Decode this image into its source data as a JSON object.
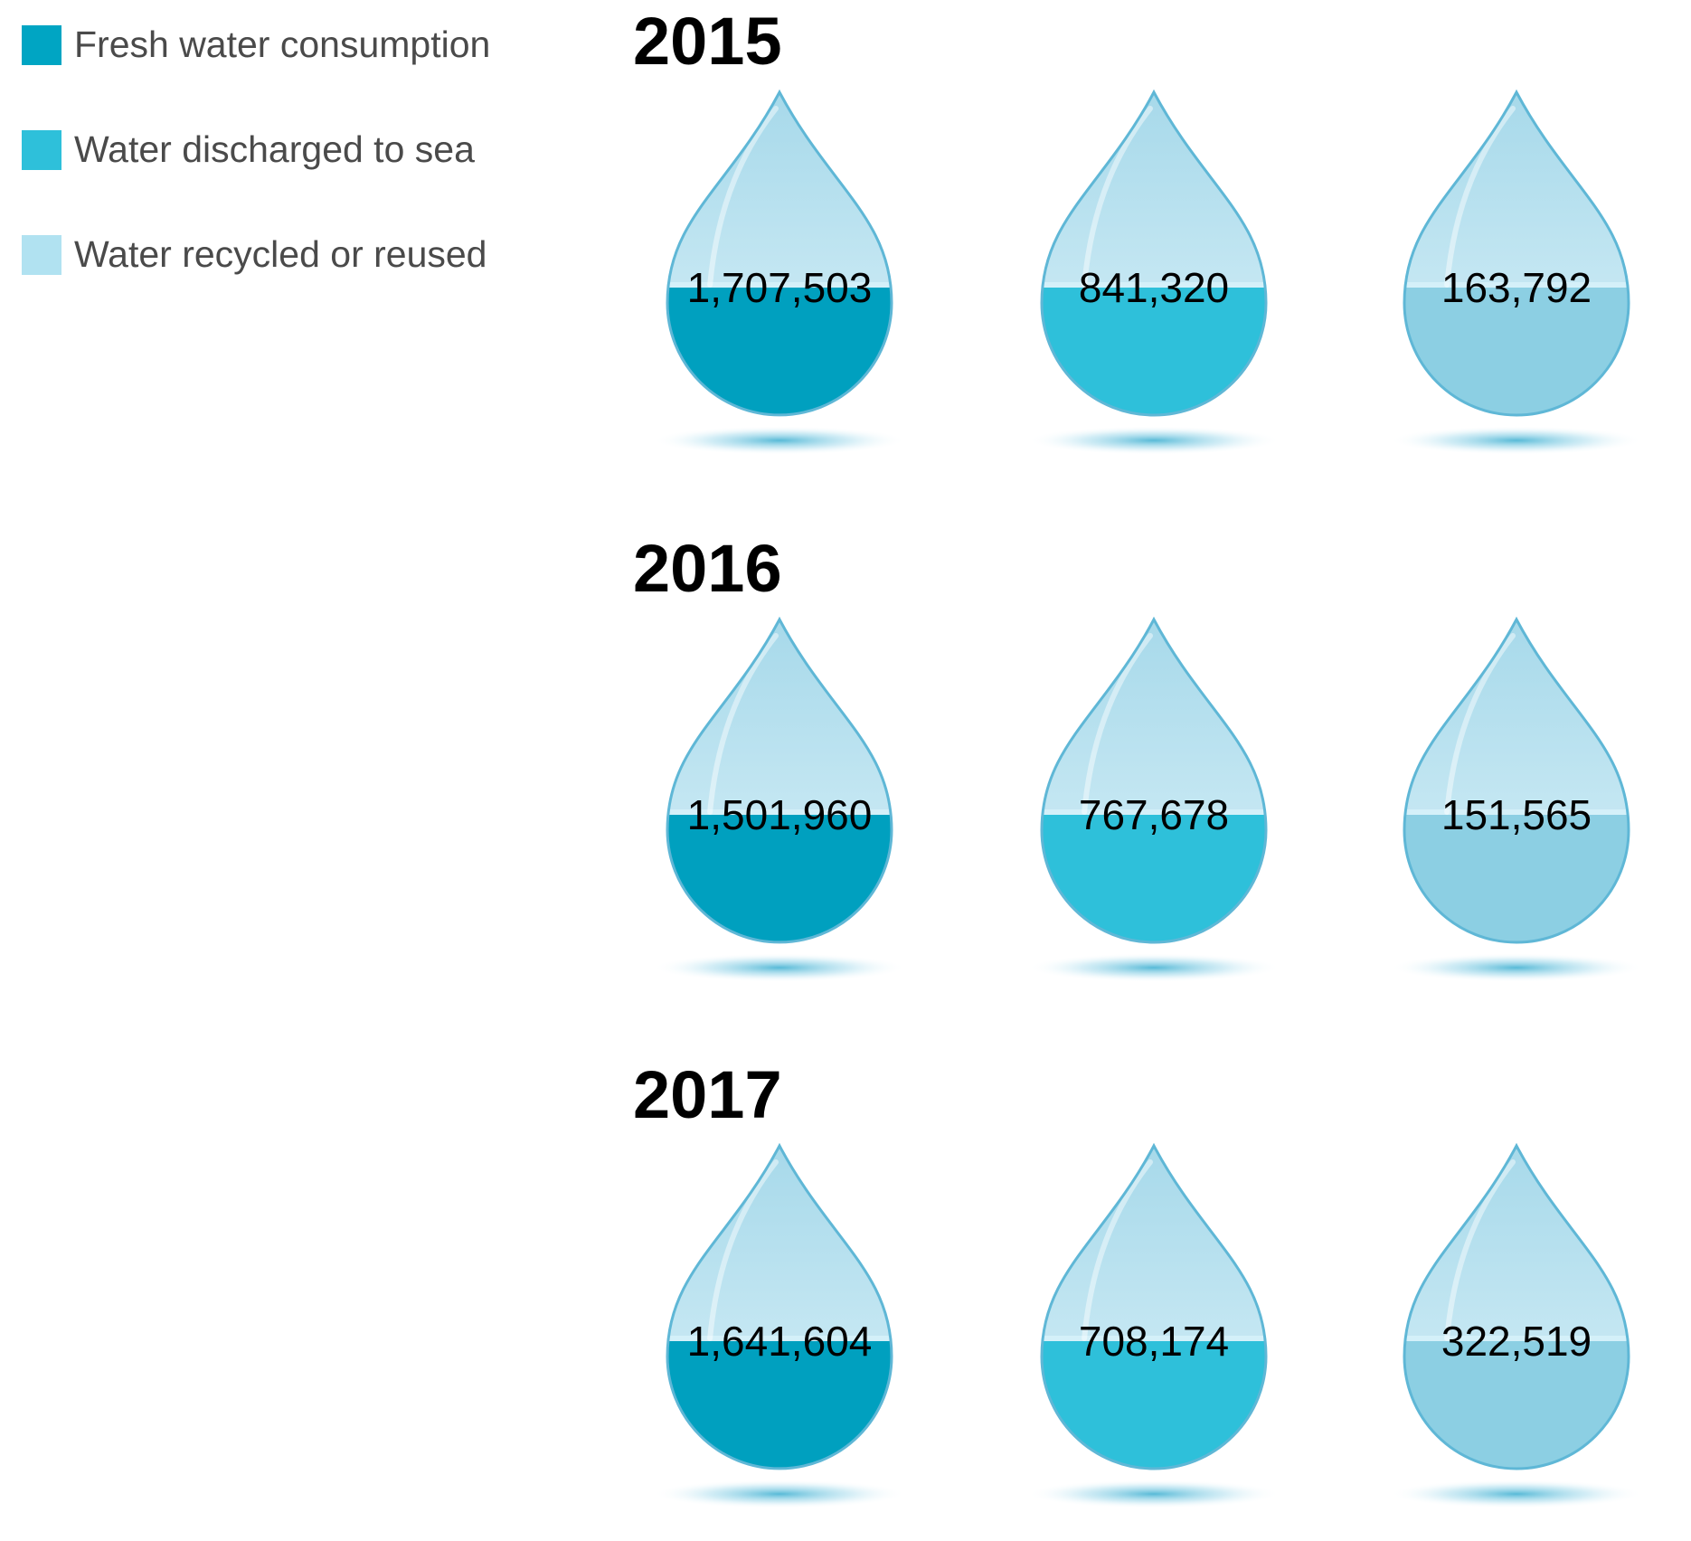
{
  "legend": [
    {
      "label": "Fresh water consumption",
      "color": "#00a5c3"
    },
    {
      "label": "Water discharged to sea",
      "color": "#2ec0da"
    },
    {
      "label": "Water recycled or reused",
      "color": "#b1e2f1"
    }
  ],
  "chart_data": {
    "type": "table",
    "title": "",
    "series_names": [
      "Fresh water consumption",
      "Water discharged to sea",
      "Water recycled or reused"
    ],
    "groups": [
      {
        "year": "2015",
        "values": [
          1707503,
          841320,
          163792
        ],
        "labels": [
          "1,707,503",
          "841,320",
          "163,792"
        ]
      },
      {
        "year": "2016",
        "values": [
          1501960,
          767678,
          151565
        ],
        "labels": [
          "1,501,960",
          "767,678",
          "151,565"
        ]
      },
      {
        "year": "2017",
        "values": [
          1641604,
          708174,
          322519
        ],
        "labels": [
          "1,641,604",
          "708,174",
          "322,519"
        ]
      }
    ],
    "colors": [
      "#00a0bf",
      "#2ec0da",
      "#8ccfe3"
    ]
  }
}
